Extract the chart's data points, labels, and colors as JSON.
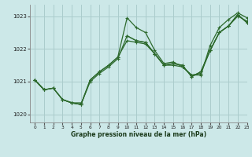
{
  "title": "",
  "xlabel": "Graphe pression niveau de la mer (hPa)",
  "background_color": "#cce8e8",
  "grid_color": "#aacccc",
  "line_color": "#2d6a2d",
  "xlim": [
    -0.5,
    23
  ],
  "ylim": [
    1019.75,
    1023.35
  ],
  "yticks": [
    1020,
    1021,
    1022,
    1023
  ],
  "xticks": [
    0,
    1,
    2,
    3,
    4,
    5,
    6,
    7,
    8,
    9,
    10,
    11,
    12,
    13,
    14,
    15,
    16,
    17,
    18,
    19,
    20,
    21,
    22,
    23
  ],
  "series": [
    [
      1021.05,
      1020.75,
      null,
      1020.45,
      1020.35,
      1020.35,
      null,
      null,
      null,
      null,
      1022.4,
      1022.25,
      1022.2,
      1021.85,
      1021.5,
      1021.55,
      1021.5,
      1021.15,
      1021.3,
      1021.95,
      1022.5,
      1022.7,
      1023.05,
      1022.8
    ],
    [
      1021.05,
      1020.75,
      1020.8,
      1020.45,
      1020.35,
      1020.3,
      1021.0,
      1021.25,
      1021.45,
      1021.7,
      1022.4,
      1022.25,
      1022.2,
      1021.85,
      1021.5,
      1021.55,
      1021.5,
      1021.15,
      1021.3,
      1021.95,
      1022.5,
      1022.7,
      1023.05,
      1022.8
    ],
    [
      1021.05,
      1020.75,
      1020.8,
      1020.45,
      1020.35,
      1020.3,
      1021.05,
      1021.3,
      1021.5,
      1021.75,
      1022.95,
      1022.65,
      1022.5,
      1021.95,
      1021.55,
      1021.6,
      1021.45,
      1021.2,
      1021.2,
      1022.1,
      1022.65,
      1022.9,
      1023.1,
      1022.95
    ],
    [
      1021.05,
      1020.75,
      1020.8,
      1020.45,
      1020.35,
      1020.3,
      1021.05,
      1021.3,
      1021.5,
      1021.75,
      1022.25,
      1022.2,
      1022.15,
      1021.85,
      1021.5,
      1021.5,
      1021.45,
      1021.2,
      1021.25,
      1021.95,
      1022.5,
      1022.7,
      1023.0,
      1022.85
    ]
  ]
}
